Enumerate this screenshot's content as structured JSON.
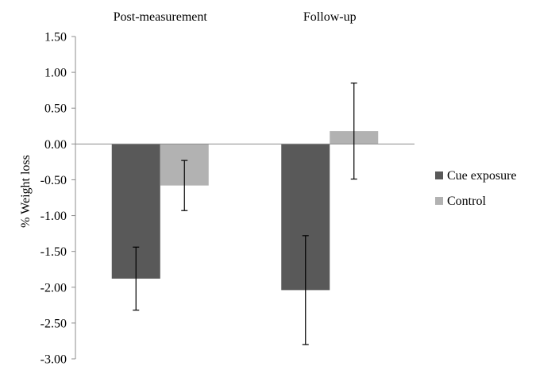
{
  "chart_data": {
    "type": "bar",
    "categories": [
      "Post-measurement",
      "Follow-up"
    ],
    "series": [
      {
        "name": "Cue exposure",
        "color": "#595959",
        "values": [
          -1.88,
          -2.04
        ],
        "error": [
          0.44,
          0.76
        ]
      },
      {
        "name": "Control",
        "color": "#b2b2b2",
        "values": [
          -0.58,
          0.18
        ],
        "error": [
          0.35,
          0.67
        ]
      }
    ],
    "ylabel": "% Weight loss",
    "xlabel": "",
    "ylim": [
      -3.0,
      1.5
    ],
    "yticks": [
      "1.50",
      "1.00",
      "0.50",
      "0.00",
      "-0.50",
      "-1.00",
      "-1.50",
      "-2.00",
      "-2.50",
      "-3.00"
    ],
    "ytick_values": [
      1.5,
      1.0,
      0.5,
      0.0,
      -0.5,
      -1.0,
      -1.5,
      -2.0,
      -2.5,
      -3.0
    ],
    "category_labels_position": "top",
    "legend_position": "right",
    "grid": false
  }
}
